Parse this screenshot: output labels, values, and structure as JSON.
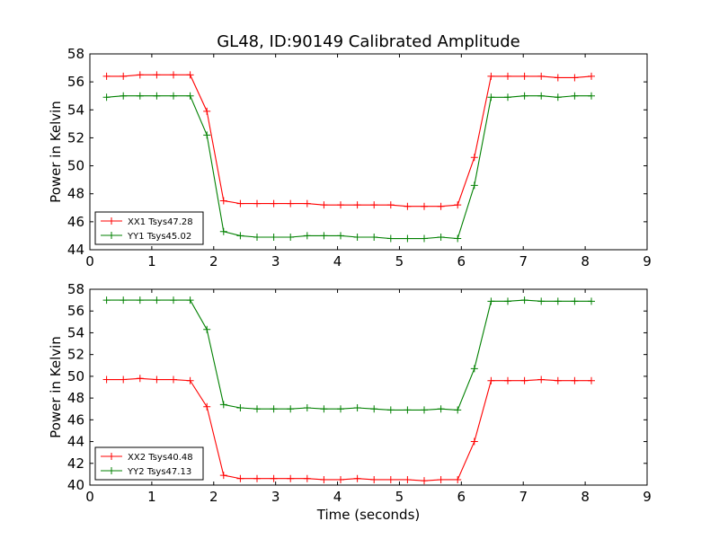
{
  "title": "GL48, ID:90149 Calibrated Amplitude",
  "chart_data": [
    {
      "type": "line",
      "title": "GL48, ID:90149 Calibrated Amplitude",
      "ylabel": "Power in Kelvin",
      "xlabel": "",
      "xlim": [
        0,
        9
      ],
      "ylim": [
        44,
        58
      ],
      "xticks": [
        "0",
        "1",
        "2",
        "3",
        "4",
        "5",
        "6",
        "7",
        "8",
        "9"
      ],
      "yticks": [
        "44",
        "46",
        "48",
        "50",
        "52",
        "54",
        "56",
        "58"
      ],
      "legend": "lower-left",
      "x": [
        0.27,
        0.54,
        0.81,
        1.08,
        1.35,
        1.62,
        1.89,
        2.16,
        2.43,
        2.7,
        2.97,
        3.24,
        3.51,
        3.78,
        4.05,
        4.32,
        4.59,
        4.86,
        5.13,
        5.4,
        5.67,
        5.94,
        6.21,
        6.48,
        6.75,
        7.02,
        7.29,
        7.56,
        7.83,
        8.1
      ],
      "series": [
        {
          "name": "XX1 Tsys47.28",
          "color": "#ff0000",
          "values": [
            56.4,
            56.4,
            56.5,
            56.5,
            56.5,
            56.5,
            53.9,
            47.5,
            47.3,
            47.3,
            47.3,
            47.3,
            47.3,
            47.2,
            47.2,
            47.2,
            47.2,
            47.2,
            47.1,
            47.1,
            47.1,
            47.2,
            50.6,
            56.4,
            56.4,
            56.4,
            56.4,
            56.3,
            56.3,
            56.4
          ]
        },
        {
          "name": "YY1 Tsys45.02",
          "color": "#008000",
          "values": [
            54.9,
            55.0,
            55.0,
            55.0,
            55.0,
            55.0,
            52.2,
            45.3,
            45.0,
            44.9,
            44.9,
            44.9,
            45.0,
            45.0,
            45.0,
            44.9,
            44.9,
            44.8,
            44.8,
            44.8,
            44.9,
            44.8,
            48.6,
            54.9,
            54.9,
            55.0,
            55.0,
            54.9,
            55.0,
            55.0
          ]
        }
      ]
    },
    {
      "type": "line",
      "title": "",
      "ylabel": "Power in Kelvin",
      "xlabel": "Time (seconds)",
      "xlim": [
        0,
        9
      ],
      "ylim": [
        40,
        58
      ],
      "xticks": [
        "0",
        "1",
        "2",
        "3",
        "4",
        "5",
        "6",
        "7",
        "8",
        "9"
      ],
      "yticks": [
        "40",
        "42",
        "44",
        "46",
        "48",
        "50",
        "52",
        "54",
        "56",
        "58"
      ],
      "legend": "lower-left",
      "x": [
        0.27,
        0.54,
        0.81,
        1.08,
        1.35,
        1.62,
        1.89,
        2.16,
        2.43,
        2.7,
        2.97,
        3.24,
        3.51,
        3.78,
        4.05,
        4.32,
        4.59,
        4.86,
        5.13,
        5.4,
        5.67,
        5.94,
        6.21,
        6.48,
        6.75,
        7.02,
        7.29,
        7.56,
        7.83,
        8.1
      ],
      "series": [
        {
          "name": "XX2 Tsys40.48",
          "color": "#ff0000",
          "values": [
            49.7,
            49.7,
            49.8,
            49.7,
            49.7,
            49.6,
            47.2,
            40.9,
            40.6,
            40.6,
            40.6,
            40.6,
            40.6,
            40.5,
            40.5,
            40.6,
            40.5,
            40.5,
            40.5,
            40.4,
            40.5,
            40.5,
            44.0,
            49.6,
            49.6,
            49.6,
            49.7,
            49.6,
            49.6,
            49.6
          ]
        },
        {
          "name": "YY2 Tsys47.13",
          "color": "#008000",
          "values": [
            57.0,
            57.0,
            57.0,
            57.0,
            57.0,
            57.0,
            54.3,
            47.4,
            47.1,
            47.0,
            47.0,
            47.0,
            47.1,
            47.0,
            47.0,
            47.1,
            47.0,
            46.9,
            46.9,
            46.9,
            47.0,
            46.9,
            50.7,
            56.9,
            56.9,
            57.0,
            56.9,
            56.9,
            56.9,
            56.9
          ]
        }
      ]
    }
  ]
}
